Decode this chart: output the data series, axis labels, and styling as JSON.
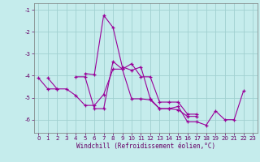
{
  "xlabel": "Windchill (Refroidissement éolien,°C)",
  "xlim": [
    -0.5,
    23.5
  ],
  "ylim": [
    -6.6,
    -0.7
  ],
  "yticks": [
    -6,
    -5,
    -4,
    -3,
    -2,
    -1
  ],
  "xticks": [
    0,
    1,
    2,
    3,
    4,
    5,
    6,
    7,
    8,
    9,
    10,
    11,
    12,
    13,
    14,
    15,
    16,
    17,
    18,
    19,
    20,
    21,
    22,
    23
  ],
  "bg_color": "#c5ecec",
  "grid_color": "#a0d0d0",
  "line_color": "#990099",
  "series": [
    [
      0,
      -4.1,
      1,
      -4.6,
      2,
      -4.6
    ],
    [
      1,
      -4.1,
      2,
      -4.6,
      3,
      -4.6,
      4,
      -4.9,
      5,
      -5.35,
      6,
      -5.35,
      7,
      -4.85,
      8,
      -3.7,
      9,
      -3.7,
      10,
      -3.45,
      11,
      -4.05,
      12,
      -4.05,
      13,
      -5.2,
      14,
      -5.2,
      15,
      -5.2,
      16,
      -5.75,
      17,
      -5.75
    ],
    [
      4,
      -4.05,
      5,
      -4.05,
      6,
      -5.5,
      7,
      -5.5,
      8,
      -3.35,
      9,
      -3.7,
      10,
      -5.05,
      11,
      -5.05,
      12,
      -5.1,
      13,
      -5.5,
      14,
      -5.5,
      15,
      -5.55,
      16,
      -5.85,
      17,
      -5.85
    ],
    [
      5,
      -3.9,
      6,
      -3.95,
      7,
      -1.25,
      8,
      -1.8,
      9,
      -3.6,
      10,
      -3.75,
      11,
      -3.6,
      12,
      -5.05,
      13,
      -5.5,
      14,
      -5.5,
      15,
      -5.4,
      16,
      -6.1,
      17,
      -6.1,
      18,
      -6.25,
      19,
      -5.6,
      20,
      -6.0,
      21,
      -6.0,
      22,
      -4.7
    ]
  ]
}
